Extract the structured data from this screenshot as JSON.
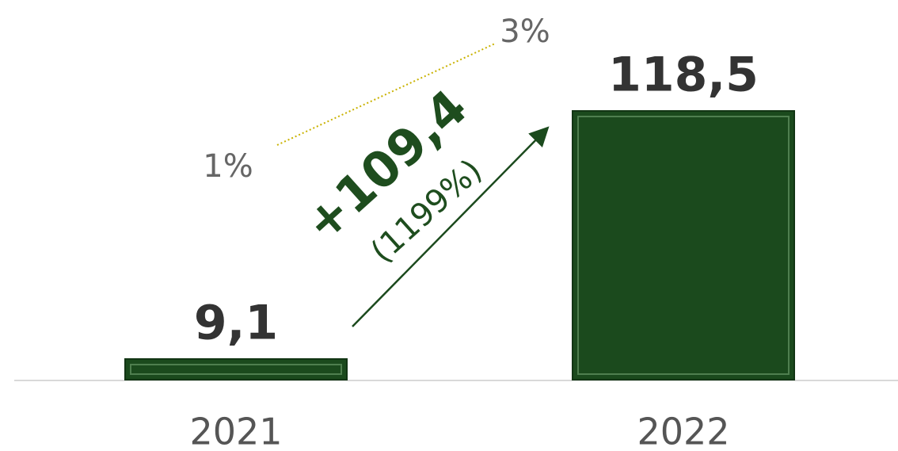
{
  "chart_data": {
    "type": "bar",
    "categories": [
      "2021",
      "2022"
    ],
    "values": [
      9.1,
      118.5
    ],
    "value_labels": [
      "9,1",
      "118,5"
    ],
    "color": "#1b4a1d",
    "annotations": {
      "difference": "+109,4",
      "growth": "(1199%)",
      "share_start": "1%",
      "share_end": "3%"
    }
  }
}
